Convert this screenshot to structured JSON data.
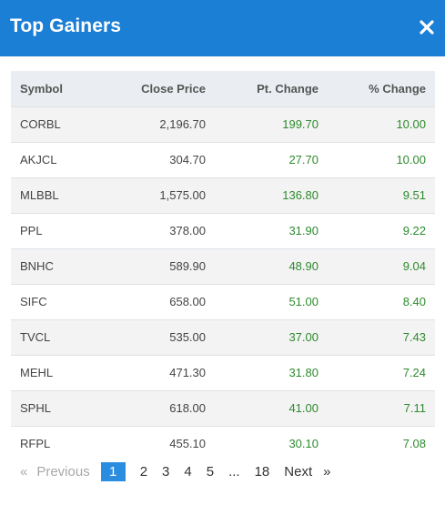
{
  "header": {
    "title": "Top Gainers",
    "close_icon": "close-icon"
  },
  "table": {
    "columns": [
      "Symbol",
      "Close Price",
      "Pt. Change",
      "% Change"
    ],
    "rows": [
      [
        "CORBL",
        "2,196.70",
        "199.70",
        "10.00"
      ],
      [
        "AKJCL",
        "304.70",
        "27.70",
        "10.00"
      ],
      [
        "MLBBL",
        "1,575.00",
        "136.80",
        "9.51"
      ],
      [
        "PPL",
        "378.00",
        "31.90",
        "9.22"
      ],
      [
        "BNHC",
        "589.90",
        "48.90",
        "9.04"
      ],
      [
        "SIFC",
        "658.00",
        "51.00",
        "8.40"
      ],
      [
        "TVCL",
        "535.00",
        "37.00",
        "7.43"
      ],
      [
        "MEHL",
        "471.30",
        "31.80",
        "7.24"
      ],
      [
        "SPHL",
        "618.00",
        "41.00",
        "7.11"
      ],
      [
        "RFPL",
        "455.10",
        "30.10",
        "7.08"
      ]
    ],
    "change_color": "#2e8b2e"
  },
  "pagination": {
    "prev_arrow": "«",
    "prev_label": "Previous",
    "pages": [
      "1",
      "2",
      "3",
      "4",
      "5",
      "...",
      "18"
    ],
    "active_page": "1",
    "next_label": "Next",
    "next_arrow": "»"
  },
  "colors": {
    "header_bg": "#1b7fd6",
    "active_page_bg": "#2b8de0"
  }
}
